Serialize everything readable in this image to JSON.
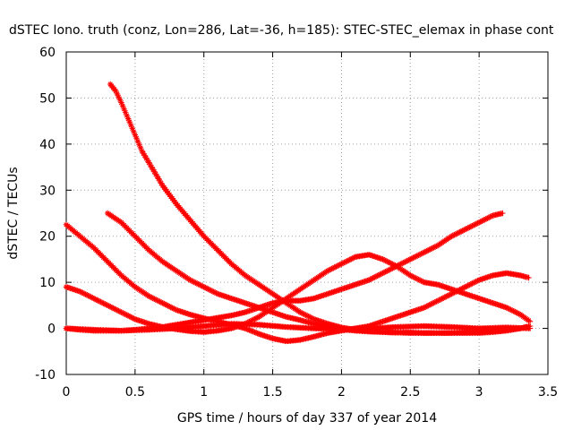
{
  "chart_data": {
    "type": "scatter",
    "title": "dSTEC Iono. truth (conz, Lon=286, Lat=-36, h=185): STEC-STEC_elemax in phase cont",
    "xlabel": "GPS time / hours of day 337 of year 2014",
    "ylabel": "dSTEC  / TECUs",
    "xlim": [
      0,
      3.5
    ],
    "ylim": [
      -10,
      60
    ],
    "xticks": [
      "0",
      "0.5",
      "1",
      "1.5",
      "2",
      "2.5",
      "3",
      "3.5"
    ],
    "yticks": [
      "-10",
      "0",
      "10",
      "20",
      "30",
      "40",
      "50",
      "60"
    ],
    "grid": true,
    "marker_color": "#ff0000",
    "marker": "plus-x",
    "series": [
      {
        "x": [
          0.32,
          0.36,
          0.4,
          0.45,
          0.5,
          0.55,
          0.6,
          0.7,
          0.8,
          0.9,
          1.0,
          1.1,
          1.2,
          1.3,
          1.4,
          1.5,
          1.6,
          1.7,
          1.8,
          1.9,
          2.0,
          2.1,
          2.2,
          2.3,
          2.4,
          2.5,
          2.6,
          2.7,
          2.8,
          2.9,
          3.0,
          3.1,
          3.2,
          3.3,
          3.37
        ],
        "y": [
          53.0,
          51.5,
          49.0,
          45.5,
          42.0,
          38.5,
          36.0,
          31.0,
          27.0,
          23.5,
          20.0,
          17.0,
          14.0,
          11.5,
          9.5,
          7.5,
          5.5,
          3.5,
          2.0,
          1.0,
          0.2,
          -0.3,
          -0.6,
          -0.8,
          -0.9,
          -1.0,
          -1.0,
          -1.0,
          -1.0,
          -0.9,
          -0.8,
          -0.6,
          -0.3,
          0.0,
          0.5
        ]
      },
      {
        "x": [
          0.3,
          0.4,
          0.5,
          0.6,
          0.7,
          0.8,
          0.9,
          1.0,
          1.1,
          1.2,
          1.3,
          1.4,
          1.5,
          1.6,
          1.7,
          1.8,
          1.9,
          2.0,
          2.1,
          2.2,
          2.3,
          2.4,
          2.5,
          2.6,
          2.7,
          2.8,
          2.9,
          3.0,
          3.1,
          3.2,
          3.3,
          3.37
        ],
        "y": [
          25.0,
          23.0,
          20.0,
          17.0,
          14.5,
          12.5,
          10.5,
          9.0,
          7.5,
          6.5,
          5.5,
          4.5,
          3.5,
          2.5,
          1.8,
          1.0,
          0.4,
          -0.2,
          -0.5,
          -0.7,
          -0.8,
          -0.9,
          -0.9,
          -1.0,
          -1.0,
          -1.0,
          -1.0,
          -1.0,
          -0.8,
          -0.5,
          0.0,
          0.5
        ]
      },
      {
        "x": [
          0.0,
          0.1,
          0.2,
          0.3,
          0.4,
          0.5,
          0.6,
          0.7,
          0.8,
          0.9,
          1.0,
          1.1,
          1.2,
          1.3,
          1.4,
          1.5,
          1.6,
          1.7,
          1.8,
          1.9,
          2.0,
          2.1,
          2.2,
          2.3,
          2.4,
          2.5,
          2.6,
          2.7,
          2.8,
          2.9,
          3.0,
          3.1,
          3.2,
          3.3,
          3.36
        ],
        "y": [
          22.5,
          20.0,
          17.5,
          14.5,
          11.5,
          9.0,
          7.0,
          5.5,
          4.0,
          3.0,
          2.2,
          1.5,
          0.8,
          0.0,
          -1.2,
          -2.2,
          -2.8,
          -2.5,
          -1.8,
          -1.0,
          -0.5,
          0.0,
          0.5,
          1.5,
          2.5,
          3.5,
          4.5,
          6.0,
          7.5,
          9.0,
          10.5,
          11.5,
          12.0,
          11.5,
          11.0
        ]
      },
      {
        "x": [
          0.0,
          0.1,
          0.2,
          0.3,
          0.4,
          0.5,
          0.6,
          0.7,
          0.8,
          0.9,
          1.0,
          1.1,
          1.2,
          1.3,
          1.4,
          1.5,
          1.6,
          1.7,
          1.8,
          1.9,
          2.0,
          2.1,
          2.2,
          2.3,
          2.4,
          2.5,
          2.6,
          2.7,
          2.8,
          2.9,
          3.0,
          3.1,
          3.2,
          3.3,
          3.37
        ],
        "y": [
          9.0,
          8.0,
          6.5,
          5.0,
          3.5,
          2.0,
          1.0,
          0.3,
          -0.2,
          -0.6,
          -0.8,
          -0.5,
          0.0,
          1.0,
          2.5,
          4.5,
          6.5,
          8.5,
          10.5,
          12.5,
          14.0,
          15.5,
          16.0,
          15.0,
          13.5,
          11.5,
          10.0,
          9.5,
          8.5,
          7.5,
          6.5,
          5.5,
          4.5,
          3.0,
          1.5
        ]
      },
      {
        "x": [
          0.0,
          0.1,
          0.2,
          0.3,
          0.4,
          0.5,
          0.6,
          0.7,
          0.8,
          0.9,
          1.0,
          1.1,
          1.2,
          1.3,
          1.4,
          1.5,
          1.6,
          1.7,
          1.8,
          1.9,
          2.0,
          2.1,
          2.2,
          2.3,
          2.4,
          2.5,
          2.6,
          2.7,
          2.8,
          2.9,
          3.0,
          3.1,
          3.17
        ],
        "y": [
          0.0,
          -0.3,
          -0.5,
          -0.5,
          -0.5,
          -0.3,
          0.0,
          0.3,
          0.8,
          1.3,
          1.8,
          2.3,
          2.8,
          3.5,
          4.5,
          5.5,
          6.0,
          6.0,
          6.5,
          7.5,
          8.5,
          9.5,
          10.5,
          12.0,
          13.5,
          15.0,
          16.5,
          18.0,
          20.0,
          21.5,
          23.0,
          24.5,
          25.0
        ]
      },
      {
        "x": [
          0.0,
          0.2,
          0.4,
          0.6,
          0.8,
          1.0,
          1.2,
          1.4,
          1.6,
          1.8,
          2.0,
          2.2,
          2.4,
          2.6,
          2.8,
          3.0,
          3.2,
          3.37
        ],
        "y": [
          0.0,
          -0.3,
          -0.5,
          -0.3,
          0.0,
          0.5,
          1.0,
          0.8,
          0.3,
          0.0,
          -0.2,
          0.0,
          0.3,
          0.5,
          0.3,
          0.0,
          0.2,
          0.0
        ]
      }
    ]
  }
}
